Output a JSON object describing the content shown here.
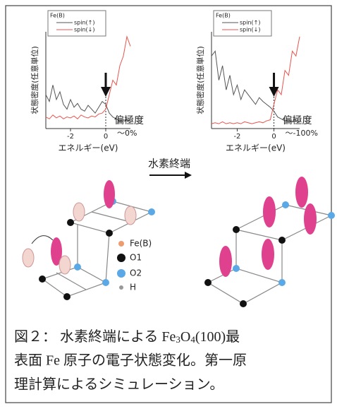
{
  "chart_data": [
    {
      "type": "line",
      "legend_title": "Fe(B)",
      "y_label": "状態密度(任意単位)",
      "x_label": "エネルギー(eV)",
      "annotation": [
        "偏極度",
        "〜0%"
      ],
      "x": [
        -3.4,
        -3.2,
        -3.0,
        -2.8,
        -2.6,
        -2.4,
        -2.2,
        -2.0,
        -1.8,
        -1.6,
        -1.4,
        -1.2,
        -1.0,
        -0.8,
        -0.6,
        -0.4,
        -0.2,
        0.0,
        0.2,
        0.4,
        0.6,
        0.8,
        1.0,
        1.2,
        1.4
      ],
      "xlim": [
        -3.4,
        1.4
      ],
      "xticks": [
        -2,
        0
      ],
      "ylim": [
        0,
        10
      ],
      "series": [
        {
          "name": "spin(↑)",
          "color": "#555555",
          "values": [
            3.5,
            2.8,
            4.5,
            3,
            3.8,
            2.5,
            2,
            3,
            2.2,
            2.6,
            2,
            1.8,
            2.4,
            2,
            1.6,
            2.2,
            2.8,
            2.5,
            1.6,
            1.2,
            1.0,
            0.8,
            0.9,
            0.8,
            0.9
          ]
        },
        {
          "name": "spin(↓)",
          "color": "#e8554f",
          "values": [
            1.2,
            1,
            1.4,
            1.1,
            1.3,
            1,
            1.2,
            1.1,
            1.3,
            1,
            1.4,
            1.2,
            1.1,
            1.3,
            1.2,
            1.5,
            1.6,
            2.0,
            3.5,
            5,
            4.5,
            6.5,
            7.5,
            9.5,
            8.5
          ]
        }
      ]
    },
    {
      "type": "line",
      "legend_title": "Fe(B)",
      "y_label": "状態密度(任意単位)",
      "x_label": "エネルギー(eV)",
      "annotation": [
        "偏極度",
        "〜-100%"
      ],
      "x": [
        -3.4,
        -3.2,
        -3.0,
        -2.8,
        -2.6,
        -2.4,
        -2.2,
        -2.0,
        -1.8,
        -1.6,
        -1.4,
        -1.2,
        -1.0,
        -0.8,
        -0.6,
        -0.4,
        -0.2,
        0.0,
        0.2,
        0.4,
        0.6,
        0.8,
        1.0,
        1.2,
        1.4
      ],
      "xlim": [
        -3.4,
        1.4
      ],
      "xticks": [
        -2,
        0
      ],
      "ylim": [
        0,
        10
      ],
      "series": [
        {
          "name": "spin(↑)",
          "color": "#555555",
          "values": [
            7.5,
            8,
            5,
            6.5,
            4,
            5.5,
            3.5,
            4.5,
            3,
            4,
            3.5,
            3,
            2.5,
            3.2,
            2.8,
            2.5,
            2.2,
            1.8,
            1.2,
            1.0,
            0.8,
            0.9,
            0.7,
            0.8,
            0.7
          ]
        },
        {
          "name": "spin(↓)",
          "color": "#e8554f",
          "values": [
            0.5,
            0.6,
            0.5,
            0.7,
            0.5,
            0.6,
            0.5,
            0.6,
            0.5,
            0.7,
            0.6,
            0.5,
            0.6,
            0.7,
            0.6,
            0.8,
            0.9,
            2.5,
            4,
            3.5,
            6,
            5.5,
            8,
            7.5,
            9.5
          ]
        }
      ]
    }
  ],
  "arrow_label": "水素終端",
  "diagram_legend": [
    "Fe(B)",
    "O1",
    "O2",
    "H"
  ],
  "caption": [
    [
      "図２： 水素終端による Fe",
      "3",
      "O",
      "4",
      "(100)最"
    ],
    [
      "表面 Fe 原子の電子状態変化。第一原"
    ],
    [
      "理計算によるシミュレーション。"
    ]
  ]
}
